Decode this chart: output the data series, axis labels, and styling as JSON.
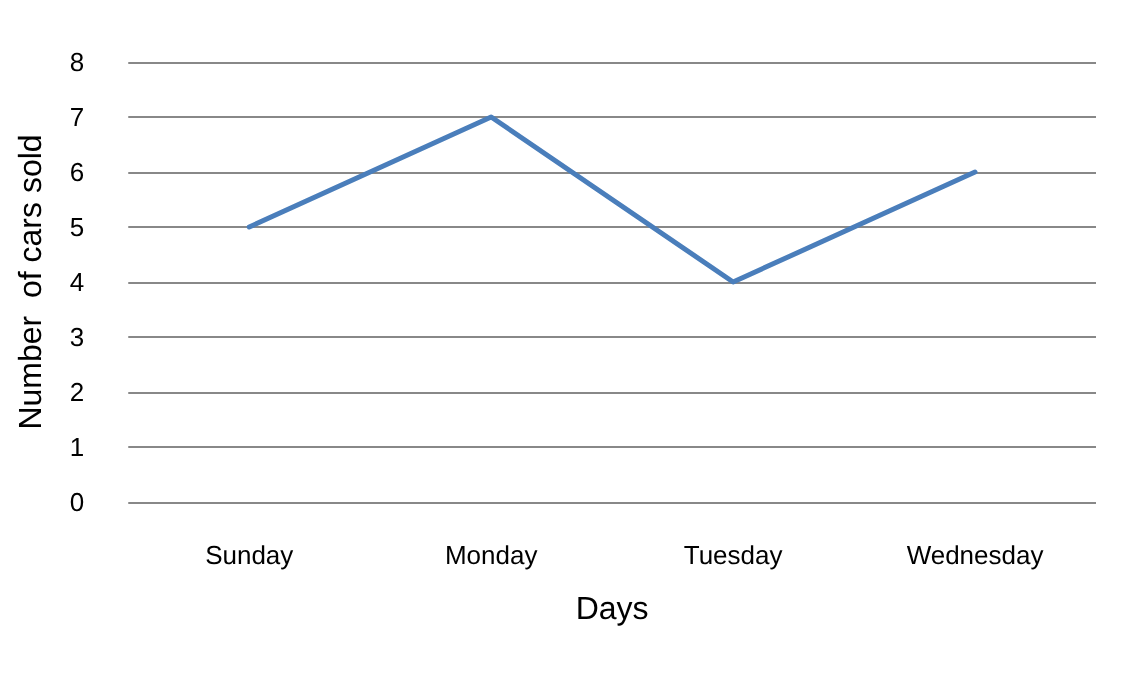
{
  "chart_data": {
    "type": "line",
    "xlabel": "Days",
    "ylabel": "Number  of cars sold",
    "categories": [
      "Sunday",
      "Monday",
      "Tuesday",
      "Wednesday"
    ],
    "series": [
      {
        "color": "#4a7ebb",
        "values": [
          5,
          7,
          4,
          6
        ]
      }
    ],
    "ylim": [
      0,
      8
    ],
    "yticks": [
      0,
      1,
      2,
      3,
      4,
      5,
      6,
      7,
      8
    ],
    "grid": "y",
    "marker": "none",
    "line_style": "solid"
  }
}
